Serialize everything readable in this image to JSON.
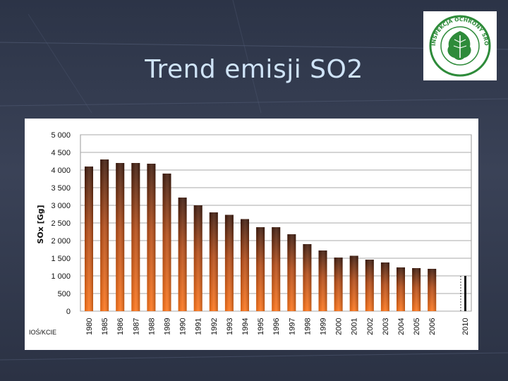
{
  "slide": {
    "title": "Trend emisji SO2"
  },
  "logo": {
    "text": "INSPEKCJA OCHRONY ŚRODOWISKA",
    "colors": {
      "primary": "#2e8b3a",
      "background": "#ffffff"
    },
    "icon": "oak-leaf-icon"
  },
  "chart_data": {
    "type": "bar",
    "ylabel": "SOx [Gg]",
    "source_label": "IOŚ/KCIE",
    "ylim": [
      0,
      5000
    ],
    "yticks": [
      0,
      500,
      1000,
      1500,
      2000,
      2500,
      3000,
      3500,
      4000,
      4500,
      5000
    ],
    "ytick_labels": [
      "0",
      "500",
      "1 000",
      "1 500",
      "2 000",
      "2 500",
      "3 000",
      "3 500",
      "4 000",
      "4 500",
      "5 000"
    ],
    "grid": true,
    "categories": [
      "1980",
      "1985",
      "1986",
      "1987",
      "1988",
      "1989",
      "1990",
      "1991",
      "1992",
      "1993",
      "1994",
      "1995",
      "1996",
      "1997",
      "1998",
      "1999",
      "2000",
      "2001",
      "2002",
      "2003",
      "2004",
      "2005",
      "2006",
      "2010"
    ],
    "values": [
      4100,
      4300,
      4200,
      4200,
      4180,
      3900,
      3220,
      3000,
      2800,
      2730,
      2610,
      2380,
      2380,
      2180,
      1900,
      1720,
      1520,
      1570,
      1460,
      1380,
      1240,
      1220,
      1200,
      1000
    ],
    "colors": {
      "bar_top": "#4a1f0e",
      "bar_bottom": "#ff6a10",
      "target_bar": "#111111"
    }
  }
}
